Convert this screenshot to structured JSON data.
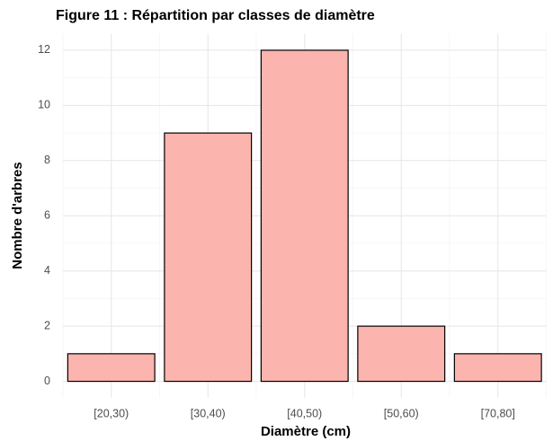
{
  "chart_data": {
    "type": "bar",
    "title": "Figure 11 : Répartition par classes de diamètre",
    "x_label": "Diamètre (cm)",
    "y_label": "Nombre d'arbres",
    "categories": [
      "[20,30)",
      "[30,40)",
      "[40,50)",
      "[50,60)",
      "[70,80]"
    ],
    "values": [
      1,
      9,
      12,
      2,
      1
    ],
    "color": "#fbb4ae",
    "ylim": [
      -0.6,
      12.6
    ],
    "yticks": [
      0,
      2,
      4,
      6,
      8,
      10,
      12
    ],
    "grid": true
  }
}
